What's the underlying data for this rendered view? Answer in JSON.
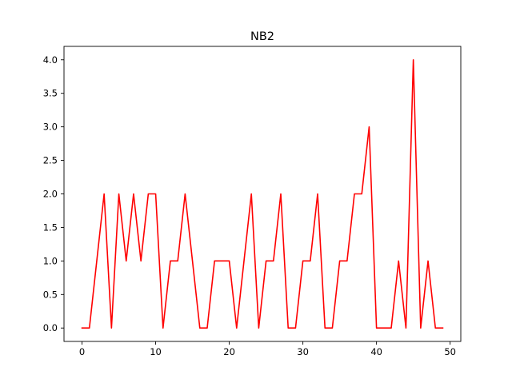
{
  "chart_data": {
    "type": "line",
    "title": "NB2",
    "xlabel": "",
    "ylabel": "",
    "xlim": [
      -2.45,
      51.45
    ],
    "ylim": [
      -0.2,
      4.2
    ],
    "xticks": [
      0,
      10,
      20,
      30,
      40,
      50
    ],
    "yticks": [
      0.0,
      0.5,
      1.0,
      1.5,
      2.0,
      2.5,
      3.0,
      3.5,
      4.0
    ],
    "ytick_labels": [
      "0.0",
      "0.5",
      "1.0",
      "1.5",
      "2.0",
      "2.5",
      "3.0",
      "3.5",
      "4.0"
    ],
    "grid": false,
    "line_color": "#ff0000",
    "series": [
      {
        "x": [
          0,
          1,
          2,
          3,
          4,
          5,
          6,
          7,
          8,
          9,
          10,
          11,
          12,
          13,
          14,
          15,
          16,
          17,
          18,
          19,
          20,
          21,
          22,
          23,
          24,
          25,
          26,
          27,
          28,
          29,
          30,
          31,
          32,
          33,
          34,
          35,
          36,
          37,
          38,
          39,
          40,
          41,
          42,
          43,
          44,
          45,
          46,
          47,
          48,
          49
        ],
        "values": [
          0,
          0,
          1,
          2,
          0,
          2,
          1,
          2,
          1,
          2,
          2,
          0,
          1,
          1,
          2,
          1,
          0,
          0,
          1,
          1,
          1,
          0,
          1,
          2,
          0,
          1,
          1,
          2,
          0,
          0,
          1,
          1,
          2,
          0,
          0,
          1,
          1,
          2,
          2,
          3,
          0,
          0,
          0,
          1,
          0,
          4,
          0,
          1,
          0,
          0
        ]
      }
    ]
  }
}
